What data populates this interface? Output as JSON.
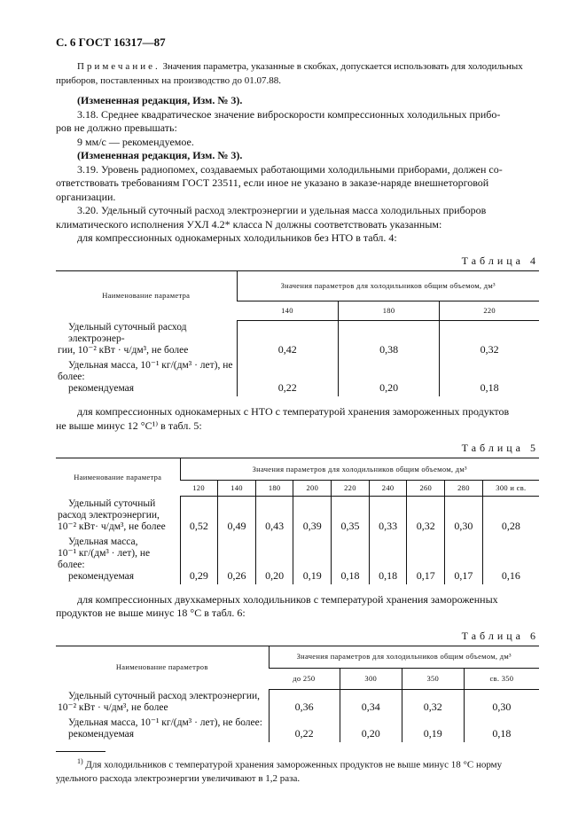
{
  "header": {
    "title": "С. 6 ГОСТ 16317—87"
  },
  "note": {
    "label": "Примечание.",
    "line1": "Значения параметра, указанные в скобках, допускается использовать для холодильных",
    "line2": "приборов, поставленных на производство до 01.07.88."
  },
  "edit_mark": "(Измененная редакция, Изм. № 3).",
  "p318": {
    "line1": "3.18. Среднее квадратическое значение виброскорости компрессионных холодильных прибо-",
    "line2": "ров не должно превышать:",
    "line3": "9 мм/с — рекомендуемое."
  },
  "p319": {
    "line1": "3.19. Уровень радиопомех, создаваемых работающими холодильными приборами, должен со-",
    "line2": "ответствовать требованиям ГОСТ 23511, если иное не указано в заказе-наряде внешнеторговой",
    "line3": "организации."
  },
  "p320": {
    "line1": "3.20. Удельный суточный расход электроэнергии и удельная масса холодильных приборов",
    "line2": "климатического исполнения УХЛ 4.2* класса N должны соответствовать указанным:",
    "line3": "для компрессионных однокамерных холодильников без НТО в табл. 4:"
  },
  "table4": {
    "caption": "Таблица 4",
    "col_param": "Наименование параметра",
    "col_group": "Значения параметров для холодильников общим объемом, дм³",
    "volumes": [
      "140",
      "180",
      "220"
    ],
    "row1_label": [
      "Удельный суточный расход электроэнер-",
      "гии, 10⁻² кВт · ч/дм³, не более"
    ],
    "row1_values": [
      "0,42",
      "0,38",
      "0,32"
    ],
    "row2_label": [
      "Удельная масса, 10⁻¹ кг/(дм³ · лет), не",
      "более:",
      "рекомендуемая"
    ],
    "row2_values": [
      "0,22",
      "0,20",
      "0,18"
    ]
  },
  "text_t5": {
    "line1": "для компрессионных однокамерных с НТО с температурой хранения замороженных продуктов",
    "line2": "не выше минус 12 °С¹⁾ в табл. 5:"
  },
  "table5": {
    "caption": "Таблица 5",
    "col_param": "Наименование параметра",
    "col_group": "Значения параметров для холодильников общим объемом, дм³",
    "volumes": [
      "120",
      "140",
      "180",
      "200",
      "220",
      "240",
      "260",
      "280",
      "300 и св."
    ],
    "row1_label": [
      "Удельный суточный",
      "расход электроэнергии,",
      "10⁻² кВт· ч/дм³, не более"
    ],
    "row1_values": [
      "0,52",
      "0,49",
      "0,43",
      "0,39",
      "0,35",
      "0,33",
      "0,32",
      "0,30",
      "0,28"
    ],
    "row2_label": [
      "Удельная масса,",
      "10⁻¹ кг/(дм³ · лет), не",
      "более:",
      "рекомендуемая"
    ],
    "row2_values": [
      "0,29",
      "0,26",
      "0,20",
      "0,19",
      "0,18",
      "0,18",
      "0,17",
      "0,17",
      "0,16"
    ]
  },
  "text_t6": {
    "line1": "для компрессионных двухкамерных холодильников с температурой хранения замороженных",
    "line2": "продуктов не выше минус 18 °С в табл. 6:"
  },
  "table6": {
    "caption": "Таблица 6",
    "col_param": "Наименование параметров",
    "col_group": "Значения параметров для холодильников общим объемом, дм³",
    "volumes": [
      "до 250",
      "300",
      "350",
      "св. 350"
    ],
    "row1_label": [
      "Удельный суточный расход электроэнергии,",
      "10⁻² кВт · ч/дм³, не более"
    ],
    "row1_values": [
      "0,36",
      "0,34",
      "0,32",
      "0,30"
    ],
    "row2_label": [
      "Удельная масса, 10⁻¹ кг/(дм³ · лет), не более:",
      "рекомендуемая"
    ],
    "row2_values": [
      "0,22",
      "0,20",
      "0,19",
      "0,18"
    ]
  },
  "footnote": {
    "mark": "1)",
    "line1": "Для холодильников с температурой хранения замороженных продуктов не выше минус 18 °С норму",
    "line2": "удельного расхода электроэнергии увеличивают в 1,2 раза."
  }
}
